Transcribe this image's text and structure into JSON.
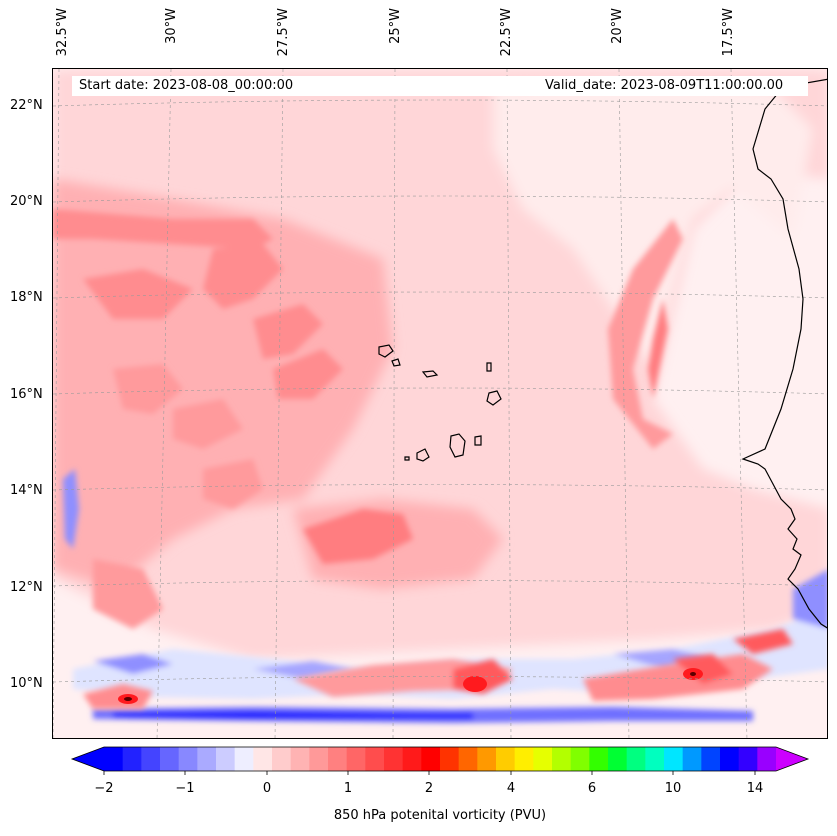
{
  "map": {
    "start_date": "Start date: 2023-08-08_00:00:00",
    "valid_date": "Valid_date: 2023-08-09T11:00:00.00",
    "lon_labels": [
      "32.5°W",
      "30°W",
      "27.5°W",
      "25°W",
      "22.5°W",
      "20°W",
      "17.5°W"
    ],
    "lat_labels": [
      "22°N",
      "20°N",
      "18°N",
      "16°N",
      "14°N",
      "12°N",
      "10°N"
    ],
    "field_colors": {
      "background": "#fff0f1",
      "light_pink": "#ffd9db",
      "pink": "#ffb3b5",
      "red_light": "#ff8c8e",
      "red": "#ff5a5d",
      "deep_red": "#ff1a1e",
      "light_blue": "#dfe4ff",
      "blue": "#8f8fff",
      "deep_blue": "#1f1fff",
      "coast": "#000000"
    }
  },
  "colorbar": {
    "label": "850 hPa potenital vorticity (PVU)",
    "ticks": [
      "−2",
      "−1",
      "0",
      "1",
      "2",
      "4",
      "6",
      "10",
      "14"
    ],
    "colors": [
      "#0000ff",
      "#2222ff",
      "#4444ff",
      "#6666ff",
      "#8888ff",
      "#aaaaff",
      "#ccccff",
      "#eeeeff",
      "#ffe6e6",
      "#ffcccc",
      "#ffb3b3",
      "#ff9999",
      "#ff8080",
      "#ff6666",
      "#ff4d4d",
      "#ff3333",
      "#ff1a1a",
      "#ff0000",
      "#ff3300",
      "#ff6600",
      "#ff9900",
      "#ffcc00",
      "#ffee00",
      "#e6ff00",
      "#b3ff00",
      "#80ff00",
      "#33ff00",
      "#00ff33",
      "#00ff80",
      "#00ffbf",
      "#00e6ff",
      "#0099ff",
      "#0044ff",
      "#0000ff",
      "#3300ff",
      "#9900ff"
    ],
    "end_under": "#0000ff",
    "end_over": "#cc00ff"
  }
}
